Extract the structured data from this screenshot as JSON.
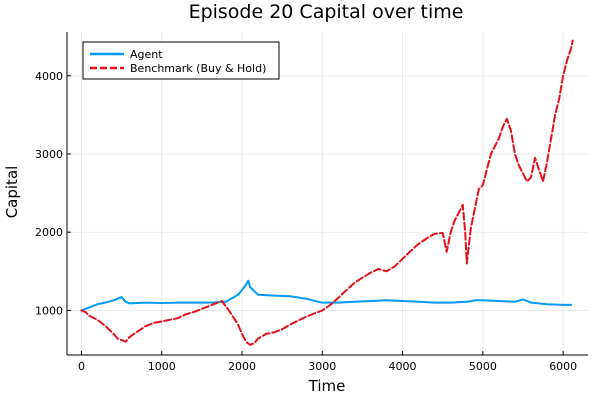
{
  "chart_data": {
    "type": "line",
    "title": "Episode 20 Capital over time",
    "xlabel": "Time",
    "ylabel": "Capital",
    "xlim": [
      -180,
      6310
    ],
    "ylim": [
      430,
      4560
    ],
    "xticks": [
      0,
      1000,
      2000,
      3000,
      4000,
      5000,
      6000
    ],
    "yticks": [
      1000,
      2000,
      3000,
      4000
    ],
    "grid": true,
    "legend_position": "top-left",
    "series": [
      {
        "name": "Agent",
        "color": "#009af9",
        "dash": "solid",
        "x": [
          0,
          100,
          200,
          300,
          400,
          450,
          500,
          550,
          600,
          800,
          1000,
          1200,
          1400,
          1600,
          1800,
          1950,
          2000,
          2050,
          2080,
          2100,
          2150,
          2200,
          2400,
          2600,
          2800,
          2950,
          3000,
          3200,
          3400,
          3600,
          3800,
          4000,
          4200,
          4400,
          4600,
          4800,
          4900,
          5000,
          5200,
          5400,
          5500,
          5600,
          5800,
          6000,
          6100
        ],
        "y": [
          1000,
          1040,
          1080,
          1100,
          1130,
          1150,
          1170,
          1110,
          1090,
          1100,
          1095,
          1100,
          1100,
          1100,
          1110,
          1200,
          1260,
          1330,
          1380,
          1300,
          1250,
          1200,
          1190,
          1180,
          1150,
          1110,
          1100,
          1100,
          1110,
          1120,
          1130,
          1120,
          1110,
          1100,
          1100,
          1110,
          1130,
          1130,
          1120,
          1110,
          1140,
          1100,
          1080,
          1070,
          1070
        ]
      },
      {
        "name": "Benchmark (Buy & Hold)",
        "color": "#e3111a",
        "dash": "dashed",
        "x": [
          0,
          50,
          100,
          200,
          300,
          400,
          450,
          500,
          550,
          600,
          700,
          800,
          900,
          1000,
          1100,
          1200,
          1300,
          1400,
          1500,
          1600,
          1700,
          1750,
          1800,
          1850,
          1900,
          1950,
          2000,
          2050,
          2100,
          2150,
          2200,
          2300,
          2400,
          2500,
          2600,
          2700,
          2800,
          2900,
          3000,
          3100,
          3200,
          3300,
          3400,
          3500,
          3600,
          3700,
          3800,
          3900,
          4000,
          4100,
          4200,
          4300,
          4400,
          4500,
          4550,
          4600,
          4650,
          4700,
          4750,
          4780,
          4800,
          4850,
          4900,
          4950,
          5000,
          5050,
          5100,
          5150,
          5200,
          5250,
          5300,
          5350,
          5400,
          5450,
          5500,
          5550,
          5600,
          5650,
          5700,
          5750,
          5800,
          5850,
          5900,
          5950,
          6000,
          6050,
          6100,
          6120
        ],
        "y": [
          1000,
          980,
          930,
          880,
          800,
          700,
          640,
          620,
          600,
          660,
          730,
          800,
          840,
          860,
          880,
          900,
          950,
          980,
          1020,
          1060,
          1100,
          1120,
          1050,
          980,
          900,
          820,
          700,
          600,
          560,
          580,
          640,
          700,
          720,
          760,
          820,
          870,
          920,
          960,
          1000,
          1070,
          1160,
          1260,
          1350,
          1420,
          1480,
          1530,
          1500,
          1560,
          1660,
          1760,
          1850,
          1920,
          1980,
          1990,
          1750,
          2000,
          2150,
          2250,
          2350,
          2000,
          1600,
          2050,
          2300,
          2550,
          2600,
          2800,
          3000,
          3100,
          3200,
          3350,
          3450,
          3300,
          3000,
          2850,
          2750,
          2650,
          2700,
          2950,
          2800,
          2650,
          2900,
          3200,
          3500,
          3700,
          4000,
          4200,
          4350,
          4450
        ]
      }
    ]
  }
}
